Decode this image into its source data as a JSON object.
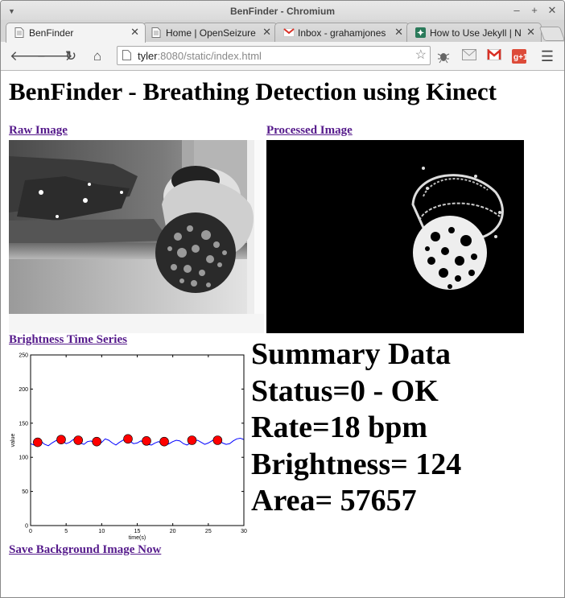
{
  "window": {
    "title": "BenFinder - Chromium"
  },
  "tabs": [
    {
      "label": "BenFinder",
      "active": true,
      "favicon": "page-icon"
    },
    {
      "label": "Home | OpenSeizure",
      "active": false,
      "favicon": "page-icon"
    },
    {
      "label": "Inbox - grahamjones",
      "active": false,
      "favicon": "gmail-icon"
    },
    {
      "label": "How to Use Jekyll | N",
      "active": false,
      "favicon": "green-square-icon"
    }
  ],
  "omnibox": {
    "host": "tyler",
    "rest": ":8080/static/index.html"
  },
  "page": {
    "heading": "BenFinder - Breathing Detection using Kinect",
    "raw_link": "Raw Image",
    "processed_link": "Processed Image",
    "brightness_link": "Brightness Time Series",
    "save_link": "Save Background Image Now"
  },
  "summary": {
    "title": "Summary Data",
    "status": "Status=0 - OK",
    "rate": "Rate=18 bpm",
    "brightness": "Brightness= 124",
    "area": "Area= 57657"
  },
  "chart_data": {
    "type": "line",
    "title": "",
    "xlabel": "time(s)",
    "ylabel": "value",
    "xlim": [
      0,
      30
    ],
    "ylim": [
      0,
      250
    ],
    "xticks": [
      0,
      5,
      10,
      15,
      20,
      25,
      30
    ],
    "yticks": [
      0,
      50,
      100,
      150,
      200,
      250
    ],
    "series": [
      {
        "type": "line",
        "color": "#0000ff",
        "x": [
          0,
          0.5,
          1,
          1.5,
          2,
          2.5,
          3,
          3.5,
          4,
          4.5,
          5,
          5.5,
          6,
          6.5,
          7,
          7.5,
          8,
          8.5,
          9,
          9.5,
          10,
          10.5,
          11,
          11.5,
          12,
          12.5,
          13,
          13.5,
          14,
          14.5,
          15,
          15.5,
          16,
          16.5,
          17,
          17.5,
          18,
          18.5,
          19,
          19.5,
          20,
          20.5,
          21,
          21.5,
          22,
          22.5,
          23,
          23.5,
          24,
          24.5,
          25,
          25.5,
          26,
          26.5,
          27,
          27.5,
          28,
          28.5,
          29,
          29.5,
          30
        ],
        "y": [
          120,
          118,
          121,
          123,
          119,
          117,
          121,
          124,
          127,
          124,
          120,
          122,
          126,
          125,
          121,
          119,
          123,
          124,
          121,
          119,
          122,
          127,
          125,
          121,
          118,
          122,
          125,
          127,
          123,
          120,
          121,
          124,
          122,
          119,
          118,
          121,
          123,
          120,
          118,
          120,
          123,
          125,
          124,
          120,
          118,
          121,
          124,
          125,
          122,
          119,
          121,
          124,
          127,
          125,
          121,
          119,
          120,
          124,
          127,
          128,
          126
        ]
      },
      {
        "type": "scatter",
        "color": "#ff0000",
        "x": [
          1,
          4.3,
          6.7,
          9.3,
          13.7,
          16.3,
          18.8,
          22.7,
          26.3
        ],
        "y": [
          122,
          126,
          125,
          123,
          127,
          124,
          123,
          125,
          125
        ]
      }
    ]
  }
}
